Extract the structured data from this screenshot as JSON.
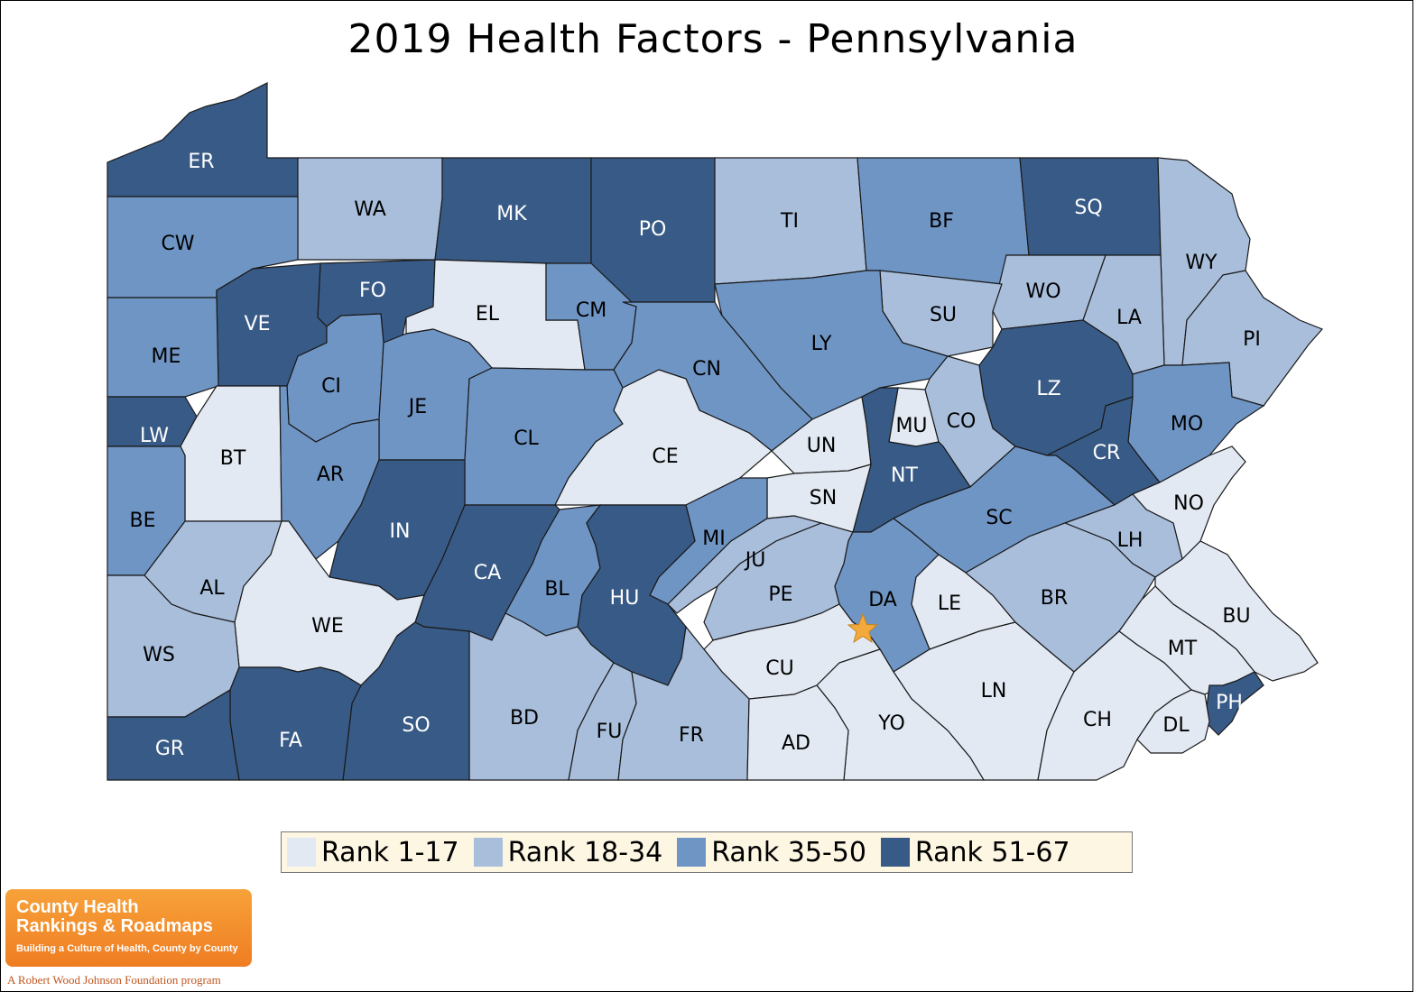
{
  "title": "2019 Health Factors - Pennsylvania",
  "colors": {
    "rank_1_17": "#e2e9f3",
    "rank_18_34": "#a9bedb",
    "rank_35_50": "#6f95c4",
    "rank_51_67": "#385a86",
    "star": "#f4a93c"
  },
  "legend": [
    {
      "label": "Rank 1-17",
      "color": "#e2e9f3"
    },
    {
      "label": "Rank 18-34",
      "color": "#a9bedb"
    },
    {
      "label": "Rank 35-50",
      "color": "#6f95c4"
    },
    {
      "label": "Rank 51-67",
      "color": "#385a86"
    }
  ],
  "counties": [
    {
      "code": "ER",
      "rank_group": "51-67"
    },
    {
      "code": "WA",
      "rank_group": "18-34"
    },
    {
      "code": "MK",
      "rank_group": "51-67"
    },
    {
      "code": "PO",
      "rank_group": "51-67"
    },
    {
      "code": "TI",
      "rank_group": "18-34"
    },
    {
      "code": "BF",
      "rank_group": "35-50"
    },
    {
      "code": "SQ",
      "rank_group": "51-67"
    },
    {
      "code": "WY",
      "rank_group": "18-34"
    },
    {
      "code": "CW",
      "rank_group": "35-50"
    },
    {
      "code": "FO",
      "rank_group": "51-67"
    },
    {
      "code": "EL",
      "rank_group": "1-17"
    },
    {
      "code": "CM",
      "rank_group": "35-50"
    },
    {
      "code": "WO",
      "rank_group": "18-34"
    },
    {
      "code": "LA",
      "rank_group": "18-34"
    },
    {
      "code": "PI",
      "rank_group": "18-34"
    },
    {
      "code": "VE",
      "rank_group": "51-67"
    },
    {
      "code": "SU",
      "rank_group": "18-34"
    },
    {
      "code": "ME",
      "rank_group": "35-50"
    },
    {
      "code": "LY",
      "rank_group": "35-50"
    },
    {
      "code": "CN",
      "rank_group": "35-50"
    },
    {
      "code": "CI",
      "rank_group": "35-50"
    },
    {
      "code": "LZ",
      "rank_group": "51-67"
    },
    {
      "code": "JE",
      "rank_group": "35-50"
    },
    {
      "code": "MU",
      "rank_group": "1-17"
    },
    {
      "code": "CO",
      "rank_group": "18-34"
    },
    {
      "code": "MO",
      "rank_group": "35-50"
    },
    {
      "code": "LW",
      "rank_group": "51-67"
    },
    {
      "code": "CL",
      "rank_group": "35-50"
    },
    {
      "code": "UN",
      "rank_group": "1-17"
    },
    {
      "code": "BT",
      "rank_group": "1-17"
    },
    {
      "code": "CE",
      "rank_group": "1-17"
    },
    {
      "code": "CR",
      "rank_group": "51-67"
    },
    {
      "code": "AR",
      "rank_group": "35-50"
    },
    {
      "code": "NT",
      "rank_group": "51-67"
    },
    {
      "code": "SN",
      "rank_group": "1-17"
    },
    {
      "code": "NO",
      "rank_group": "1-17"
    },
    {
      "code": "BE",
      "rank_group": "35-50"
    },
    {
      "code": "SC",
      "rank_group": "35-50"
    },
    {
      "code": "IN",
      "rank_group": "51-67"
    },
    {
      "code": "LH",
      "rank_group": "18-34"
    },
    {
      "code": "MI",
      "rank_group": "35-50"
    },
    {
      "code": "CA",
      "rank_group": "51-67"
    },
    {
      "code": "JU",
      "rank_group": "18-34"
    },
    {
      "code": "AL",
      "rank_group": "18-34"
    },
    {
      "code": "BL",
      "rank_group": "35-50"
    },
    {
      "code": "PE",
      "rank_group": "18-34"
    },
    {
      "code": "HU",
      "rank_group": "51-67"
    },
    {
      "code": "DA",
      "rank_group": "35-50"
    },
    {
      "code": "LE",
      "rank_group": "1-17"
    },
    {
      "code": "BR",
      "rank_group": "18-34"
    },
    {
      "code": "BU",
      "rank_group": "1-17"
    },
    {
      "code": "WE",
      "rank_group": "1-17"
    },
    {
      "code": "MT",
      "rank_group": "1-17"
    },
    {
      "code": "WS",
      "rank_group": "18-34"
    },
    {
      "code": "CU",
      "rank_group": "1-17"
    },
    {
      "code": "LN",
      "rank_group": "1-17"
    },
    {
      "code": "PH",
      "rank_group": "51-67"
    },
    {
      "code": "BD",
      "rank_group": "18-34"
    },
    {
      "code": "CH",
      "rank_group": "1-17"
    },
    {
      "code": "SO",
      "rank_group": "51-67"
    },
    {
      "code": "YO",
      "rank_group": "1-17"
    },
    {
      "code": "FU",
      "rank_group": "18-34"
    },
    {
      "code": "DL",
      "rank_group": "1-17"
    },
    {
      "code": "FA",
      "rank_group": "51-67"
    },
    {
      "code": "FR",
      "rank_group": "18-34"
    },
    {
      "code": "AD",
      "rank_group": "1-17"
    },
    {
      "code": "GR",
      "rank_group": "51-67"
    }
  ],
  "capital_marker": "star",
  "logo": {
    "line1": "County Health",
    "line2": "Rankings & Roadmaps",
    "tagline": "Building a Culture of Health, County by County",
    "program": "A Robert Wood Johnson Foundation program"
  }
}
